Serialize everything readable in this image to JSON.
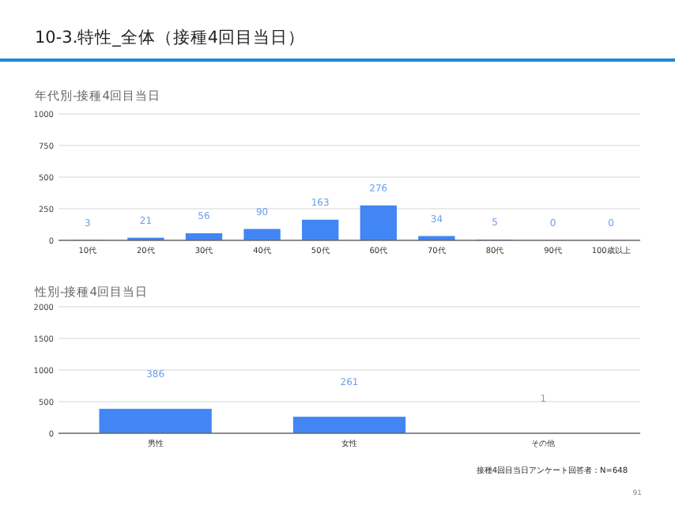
{
  "chart_data": [
    {
      "type": "bar",
      "title": "10-3.特性_全体（接種4回目当日）",
      "subtitle": "年代別-接種4回目当日",
      "categories": [
        "10代",
        "20代",
        "30代",
        "40代",
        "50代",
        "60代",
        "70代",
        "80代",
        "90代",
        "100歳以上"
      ],
      "values": [
        3,
        21,
        56,
        90,
        163,
        276,
        34,
        5,
        0,
        0
      ],
      "color": "#4285f4",
      "ylim": [
        0,
        1000
      ],
      "yticks": [
        0,
        250,
        500,
        750,
        1000
      ],
      "grid": "y",
      "data_labels": true
    },
    {
      "type": "bar",
      "title": "性別-接種4回目当日",
      "categories": [
        "男性",
        "女性",
        "その他"
      ],
      "values": [
        386,
        261,
        1
      ],
      "color": "#4285f4",
      "ylim": [
        0,
        2000
      ],
      "yticks": [
        0,
        500,
        1000,
        1500,
        2000
      ],
      "grid": "y",
      "data_labels": true,
      "annotations": [
        "接種4回目当日アンケート回答者：N=648",
        "91"
      ]
    }
  ]
}
